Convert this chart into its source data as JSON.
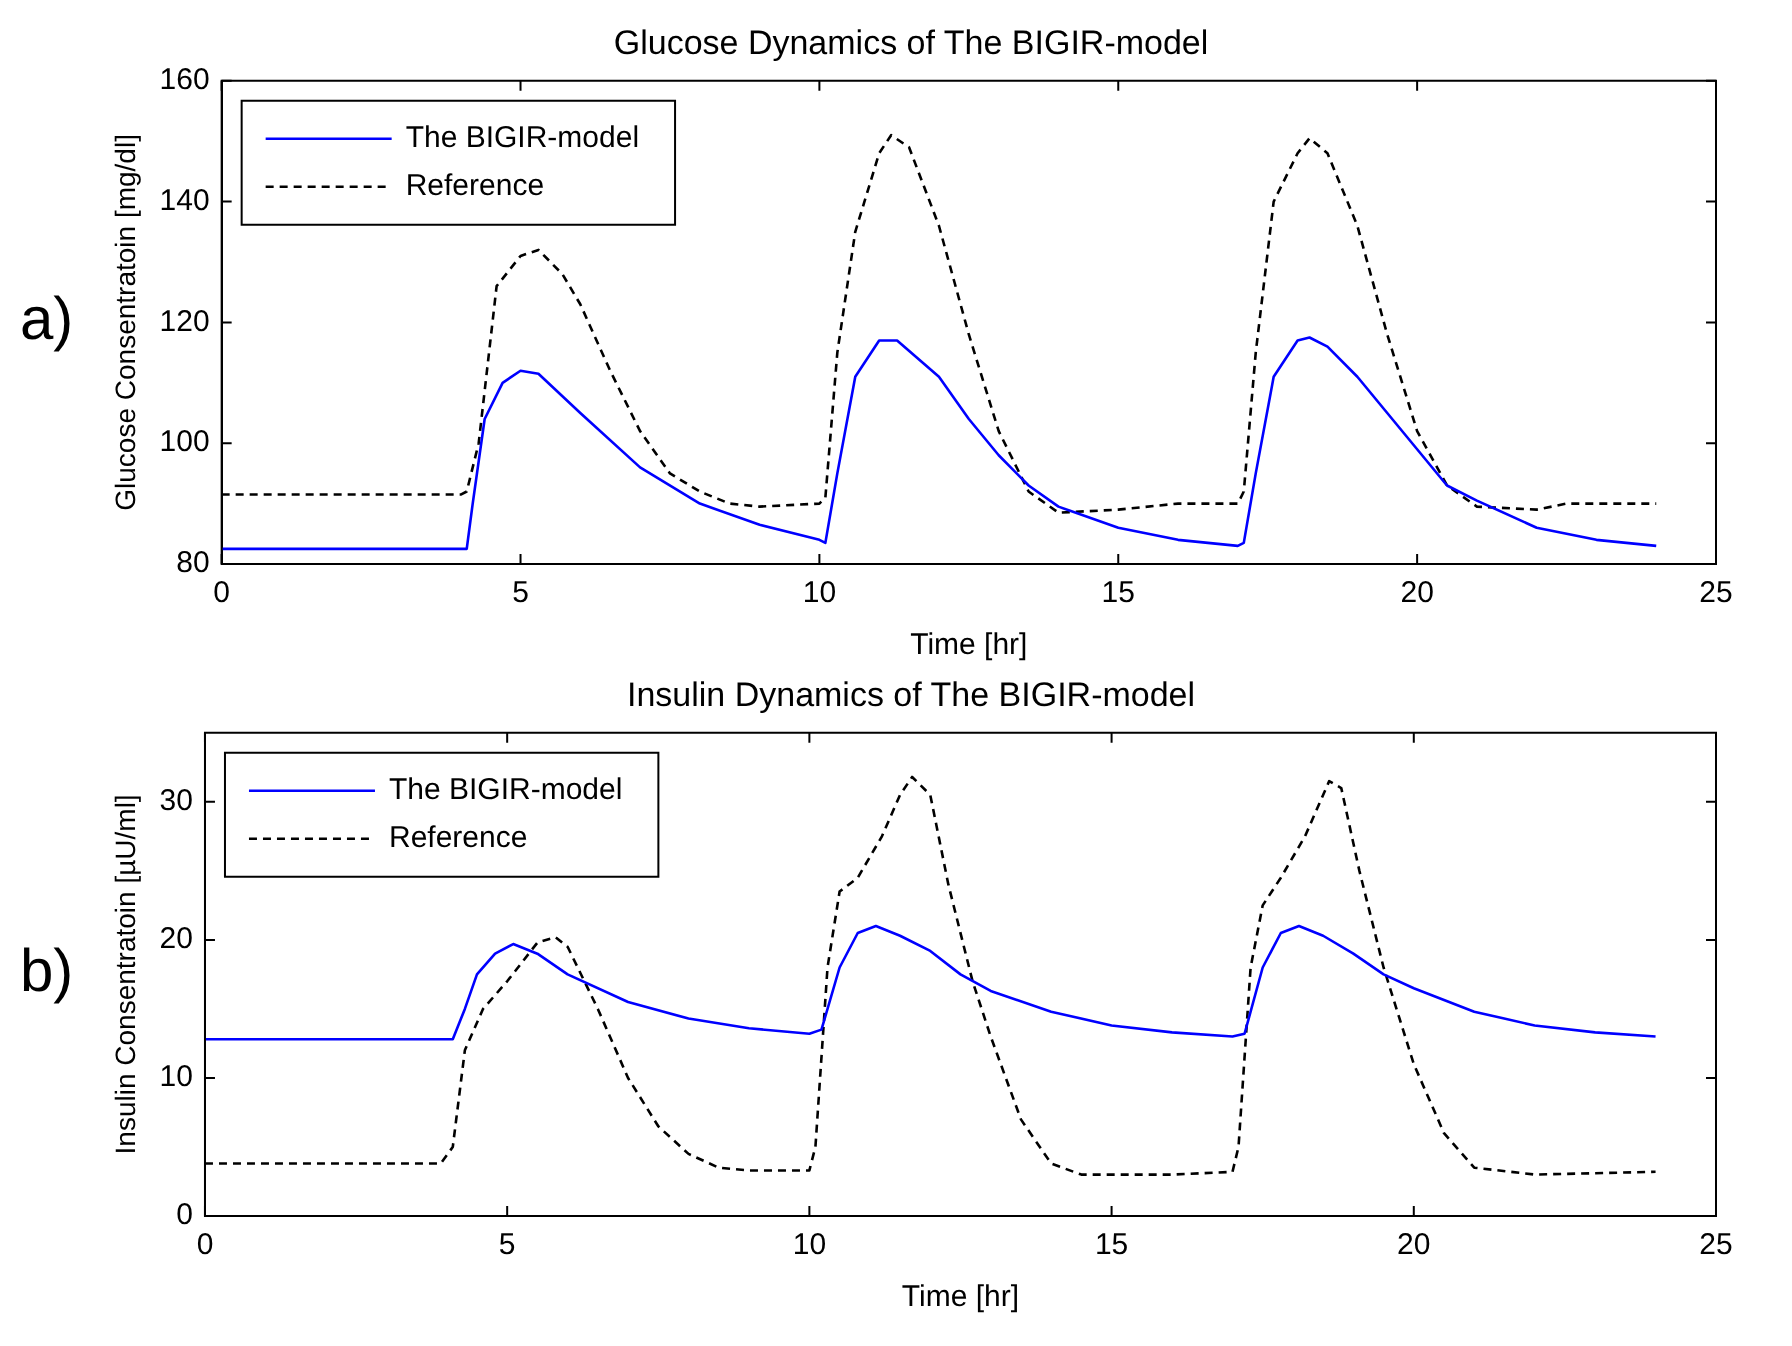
{
  "chart_data": [
    {
      "type": "line",
      "title": "Glucose Dynamics of The BIGIR-model",
      "xlabel": "Time [hr]",
      "ylabel": "Glucose Consentratoin [mg/dl]",
      "annotations": [
        "a)"
      ],
      "xlim": [
        0,
        25
      ],
      "xticks": [
        0,
        5,
        10,
        15,
        20,
        25
      ],
      "ylim": [
        80,
        160
      ],
      "yticks": [
        80,
        100,
        120,
        140,
        160
      ],
      "grid": false,
      "legend": "top left",
      "series": [
        {
          "name": "The BIGIR-model",
          "color": "#0000ff",
          "line_style": "solid",
          "x": [
            0,
            4.1,
            4.2,
            4.4,
            4.7,
            5.0,
            5.3,
            6,
            7,
            8,
            9,
            10,
            10.1,
            10.3,
            10.6,
            11,
            11.3,
            12,
            12.5,
            13,
            13.5,
            14,
            15,
            16,
            17,
            17.1,
            17.3,
            17.6,
            18,
            18.2,
            18.5,
            19,
            19.5,
            20,
            20.5,
            21,
            22,
            23,
            24
          ],
          "values": [
            82.5,
            82.5,
            90,
            104,
            110,
            112,
            111.5,
            105,
            96,
            90,
            86.5,
            84,
            83.5,
            95,
            111,
            117,
            117,
            111,
            104,
            98,
            93,
            89.5,
            86,
            84,
            83,
            83.5,
            95,
            111,
            117,
            117.5,
            116,
            111,
            105,
            99,
            93,
            90.5,
            86,
            84,
            83
          ]
        },
        {
          "name": "Reference",
          "color": "#000000",
          "line_style": "dashed",
          "x": [
            0,
            4,
            4.1,
            4.3,
            4.6,
            5.0,
            5.3,
            5.7,
            6,
            6.5,
            7,
            7.5,
            8,
            8.5,
            9,
            10,
            10.1,
            10.3,
            10.6,
            11,
            11.2,
            11.5,
            12,
            12.5,
            13,
            13.5,
            14,
            15,
            16,
            17,
            17.1,
            17.3,
            17.6,
            18,
            18.2,
            18.5,
            19,
            19.5,
            20,
            20.5,
            21,
            22,
            22.5,
            24
          ],
          "values": [
            91.5,
            91.5,
            92,
            100,
            126,
            131,
            132,
            128,
            123,
            112,
            102,
            95,
            92,
            90,
            89.5,
            90,
            91,
            115,
            135,
            148,
            151,
            149,
            136,
            118,
            102,
            92,
            88.5,
            89,
            90,
            90,
            92,
            115,
            140,
            148,
            150.5,
            148,
            136,
            118,
            102,
            93,
            89.5,
            89,
            90,
            90
          ]
        }
      ]
    },
    {
      "type": "line",
      "title": "Insulin Dynamics of The BIGIR-model",
      "xlabel": "Time [hr]",
      "ylabel": "Insulin Consentratoin [µU/ml]",
      "annotations": [
        "b)"
      ],
      "xlim": [
        0,
        25
      ],
      "xticks": [
        0,
        5,
        10,
        15,
        20,
        25
      ],
      "ylim": [
        0,
        35
      ],
      "yticks": [
        0,
        10,
        20,
        30
      ],
      "grid": false,
      "legend": "top left",
      "series": [
        {
          "name": "The BIGIR-model",
          "color": "#0000ff",
          "line_style": "solid",
          "x": [
            0,
            4.1,
            4.3,
            4.5,
            4.8,
            5.1,
            5.5,
            6,
            7,
            8,
            9,
            10,
            10.2,
            10.5,
            10.8,
            11.1,
            11.5,
            12,
            12.5,
            13,
            14,
            15,
            16,
            17,
            17.2,
            17.5,
            17.8,
            18.1,
            18.5,
            19,
            19.5,
            20,
            21,
            22,
            23,
            24
          ],
          "values": [
            12.8,
            12.8,
            15,
            17.5,
            19,
            19.7,
            19,
            17.5,
            15.5,
            14.3,
            13.6,
            13.2,
            13.5,
            18,
            20.5,
            21,
            20.3,
            19.2,
            17.5,
            16.3,
            14.8,
            13.8,
            13.3,
            13,
            13.2,
            18,
            20.5,
            21,
            20.3,
            19,
            17.5,
            16.5,
            14.8,
            13.8,
            13.3,
            13
          ]
        },
        {
          "name": "Reference",
          "color": "#000000",
          "line_style": "dashed",
          "x": [
            0,
            3.9,
            4.1,
            4.3,
            4.6,
            5,
            5.5,
            5.8,
            6,
            6.5,
            7,
            7.5,
            8,
            8.5,
            9,
            10,
            10.1,
            10.3,
            10.5,
            10.8,
            11.2,
            11.5,
            11.7,
            12,
            12.3,
            12.7,
            13,
            13.5,
            14,
            14.5,
            16,
            17,
            17.1,
            17.3,
            17.5,
            17.8,
            18.2,
            18.6,
            18.8,
            19.1,
            19.5,
            20,
            20.5,
            21,
            22,
            24
          ],
          "values": [
            3.8,
            3.8,
            5,
            12,
            15,
            17,
            19.8,
            20.2,
            19.5,
            15,
            10,
            6.5,
            4.5,
            3.5,
            3.3,
            3.3,
            5,
            18,
            23.5,
            24.5,
            27.5,
            30.5,
            31.8,
            30.5,
            24,
            17,
            13,
            7,
            3.8,
            3,
            3,
            3.2,
            5,
            18,
            22.5,
            24.5,
            27.5,
            31.5,
            31,
            25,
            18,
            11,
            6,
            3.5,
            3,
            3.2
          ]
        }
      ]
    }
  ]
}
